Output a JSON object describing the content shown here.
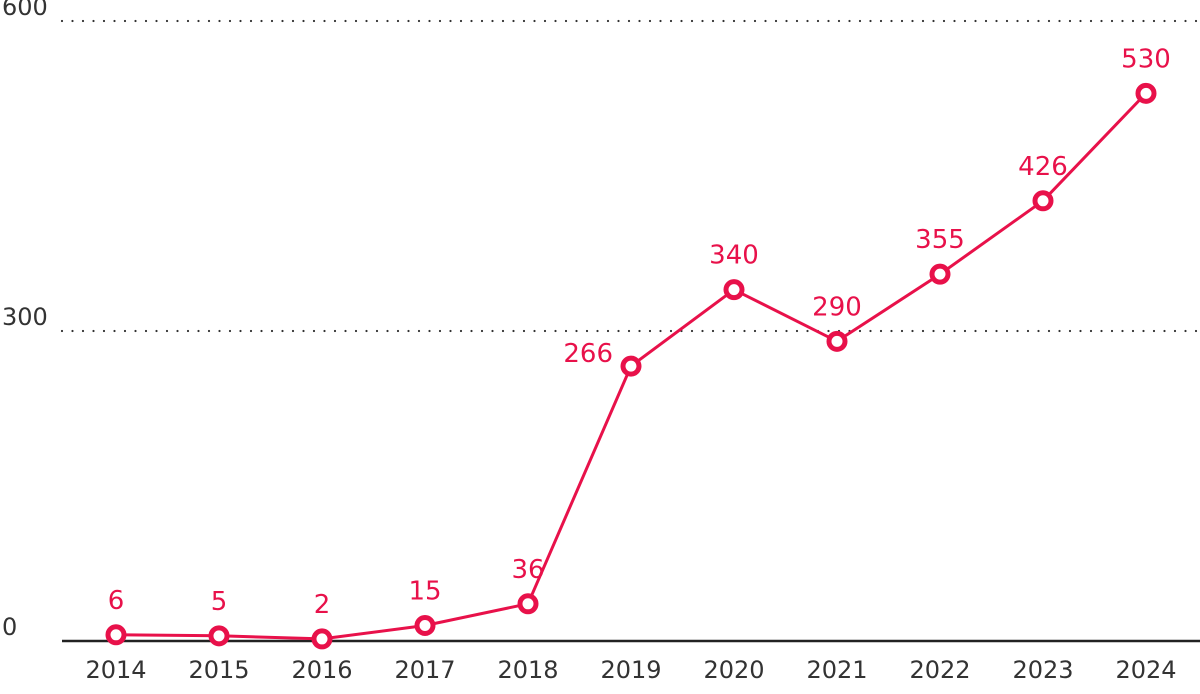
{
  "chart_data": {
    "type": "line",
    "title": "",
    "xlabel": "",
    "ylabel": "",
    "categories": [
      "2014",
      "2015",
      "2016",
      "2017",
      "2018",
      "2019",
      "2020",
      "2021",
      "2022",
      "2023",
      "2024"
    ],
    "series": [
      {
        "values": [
          6,
          5,
          2,
          15,
          36,
          266,
          340,
          290,
          355,
          426,
          530
        ],
        "labels": [
          "6",
          "5",
          "2",
          "15",
          "36",
          "266",
          "340",
          "290",
          "355",
          "426",
          "530"
        ]
      }
    ],
    "ylim": [
      0,
      600
    ],
    "yticks": [
      0,
      300,
      600
    ],
    "ytick_labels": [
      "0",
      "300",
      "600"
    ],
    "grid": "horizontal dotted",
    "legend": "none",
    "colors": {
      "series": "#e8114a",
      "grid": "#333333",
      "axis": "#222222",
      "tick_text": "#333333"
    }
  }
}
